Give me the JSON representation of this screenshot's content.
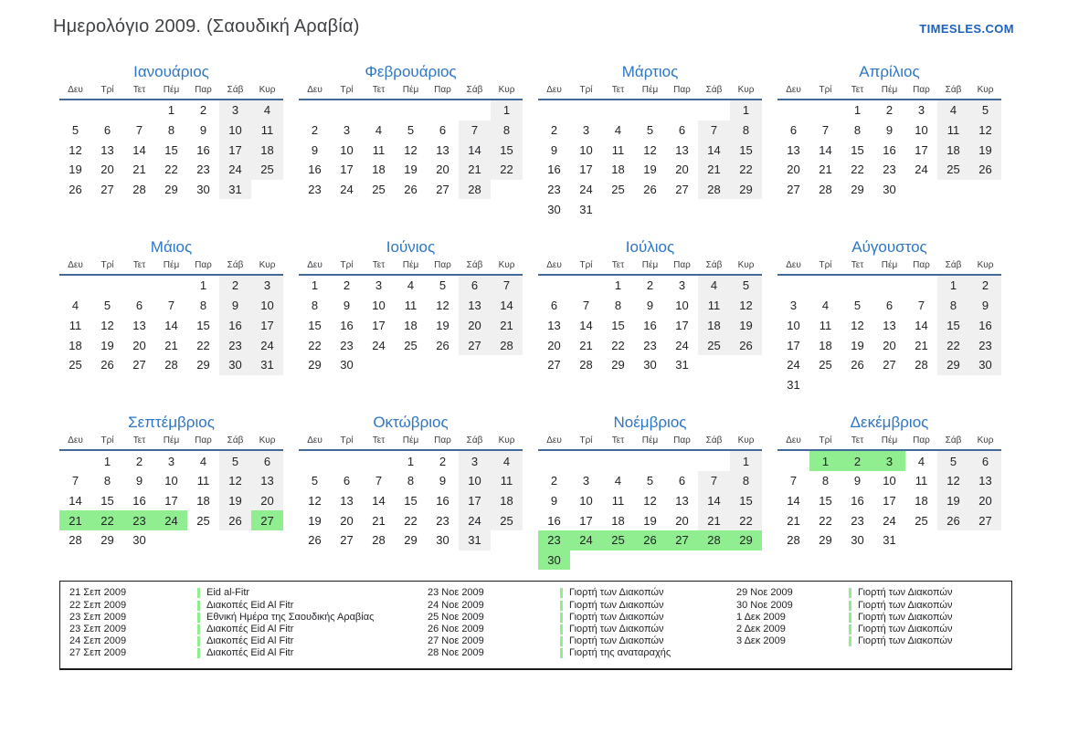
{
  "page": {
    "title": "Ημερολόγιο 2009. (Σαουδική Αραβία)",
    "site": "TIMESLES.COM"
  },
  "colors": {
    "accent_blue": "#2d76c4",
    "header_line_blue": "#41699c",
    "site_blue": "#1b61c0",
    "weekend_bg": "#f0f0f0",
    "holiday_green": "#90ee90"
  },
  "weekday_headers": [
    "Δευ",
    "Τρί",
    "Τετ",
    "Πέμ",
    "Παρ",
    "Σάβ",
    "Κυρ"
  ],
  "months": [
    {
      "name": "Ιανουάριος",
      "weeks": [
        [
          "",
          "",
          "",
          "1",
          "2",
          "3",
          "4"
        ],
        [
          "5",
          "6",
          "7",
          "8",
          "9",
          "10",
          "11"
        ],
        [
          "12",
          "13",
          "14",
          "15",
          "16",
          "17",
          "18"
        ],
        [
          "19",
          "20",
          "21",
          "22",
          "23",
          "24",
          "25"
        ],
        [
          "26",
          "27",
          "28",
          "29",
          "30",
          "31",
          ""
        ]
      ],
      "green_days": []
    },
    {
      "name": "Φεβρουάριος",
      "weeks": [
        [
          "",
          "",
          "",
          "",
          "",
          "",
          "1"
        ],
        [
          "2",
          "3",
          "4",
          "5",
          "6",
          "7",
          "8"
        ],
        [
          "9",
          "10",
          "11",
          "12",
          "13",
          "14",
          "15"
        ],
        [
          "16",
          "17",
          "18",
          "19",
          "20",
          "21",
          "22"
        ],
        [
          "23",
          "24",
          "25",
          "26",
          "27",
          "28",
          ""
        ]
      ],
      "green_days": []
    },
    {
      "name": "Μάρτιος",
      "weeks": [
        [
          "",
          "",
          "",
          "",
          "",
          "",
          "1"
        ],
        [
          "2",
          "3",
          "4",
          "5",
          "6",
          "7",
          "8"
        ],
        [
          "9",
          "10",
          "11",
          "12",
          "13",
          "14",
          "15"
        ],
        [
          "16",
          "17",
          "18",
          "19",
          "20",
          "21",
          "22"
        ],
        [
          "23",
          "24",
          "25",
          "26",
          "27",
          "28",
          "29"
        ],
        [
          "30",
          "31",
          "",
          "",
          "",
          "",
          ""
        ]
      ],
      "green_days": []
    },
    {
      "name": "Απρίλιος",
      "weeks": [
        [
          "",
          "",
          "1",
          "2",
          "3",
          "4",
          "5"
        ],
        [
          "6",
          "7",
          "8",
          "9",
          "10",
          "11",
          "12"
        ],
        [
          "13",
          "14",
          "15",
          "16",
          "17",
          "18",
          "19"
        ],
        [
          "20",
          "21",
          "22",
          "23",
          "24",
          "25",
          "26"
        ],
        [
          "27",
          "28",
          "29",
          "30",
          "",
          "",
          ""
        ]
      ],
      "green_days": []
    },
    {
      "name": "Μάιος",
      "weeks": [
        [
          "",
          "",
          "",
          "",
          "1",
          "2",
          "3"
        ],
        [
          "4",
          "5",
          "6",
          "7",
          "8",
          "9",
          "10"
        ],
        [
          "11",
          "12",
          "13",
          "14",
          "15",
          "16",
          "17"
        ],
        [
          "18",
          "19",
          "20",
          "21",
          "22",
          "23",
          "24"
        ],
        [
          "25",
          "26",
          "27",
          "28",
          "29",
          "30",
          "31"
        ]
      ],
      "green_days": []
    },
    {
      "name": "Ιούνιος",
      "weeks": [
        [
          "1",
          "2",
          "3",
          "4",
          "5",
          "6",
          "7"
        ],
        [
          "8",
          "9",
          "10",
          "11",
          "12",
          "13",
          "14"
        ],
        [
          "15",
          "16",
          "17",
          "18",
          "19",
          "20",
          "21"
        ],
        [
          "22",
          "23",
          "24",
          "25",
          "26",
          "27",
          "28"
        ],
        [
          "29",
          "30",
          "",
          "",
          "",
          "",
          ""
        ]
      ],
      "green_days": []
    },
    {
      "name": "Ιούλιος",
      "weeks": [
        [
          "",
          "",
          "1",
          "2",
          "3",
          "4",
          "5"
        ],
        [
          "6",
          "7",
          "8",
          "9",
          "10",
          "11",
          "12"
        ],
        [
          "13",
          "14",
          "15",
          "16",
          "17",
          "18",
          "19"
        ],
        [
          "20",
          "21",
          "22",
          "23",
          "24",
          "25",
          "26"
        ],
        [
          "27",
          "28",
          "29",
          "30",
          "31",
          "",
          ""
        ]
      ],
      "green_days": []
    },
    {
      "name": "Αύγουστος",
      "weeks": [
        [
          "",
          "",
          "",
          "",
          "",
          "1",
          "2"
        ],
        [
          "3",
          "4",
          "5",
          "6",
          "7",
          "8",
          "9"
        ],
        [
          "10",
          "11",
          "12",
          "13",
          "14",
          "15",
          "16"
        ],
        [
          "17",
          "18",
          "19",
          "20",
          "21",
          "22",
          "23"
        ],
        [
          "24",
          "25",
          "26",
          "27",
          "28",
          "29",
          "30"
        ],
        [
          "31",
          "",
          "",
          "",
          "",
          "",
          ""
        ]
      ],
      "green_days": []
    },
    {
      "name": "Σεπτέμβριος",
      "weeks": [
        [
          "",
          "1",
          "2",
          "3",
          "4",
          "5",
          "6"
        ],
        [
          "7",
          "8",
          "9",
          "10",
          "11",
          "12",
          "13"
        ],
        [
          "14",
          "15",
          "16",
          "17",
          "18",
          "19",
          "20"
        ],
        [
          "21",
          "22",
          "23",
          "24",
          "25",
          "26",
          "27"
        ],
        [
          "28",
          "29",
          "30",
          "",
          "",
          "",
          ""
        ]
      ],
      "green_days": [
        21,
        22,
        23,
        24,
        27
      ]
    },
    {
      "name": "Οκτώβριος",
      "weeks": [
        [
          "",
          "",
          "",
          "1",
          "2",
          "3",
          "4"
        ],
        [
          "5",
          "6",
          "7",
          "8",
          "9",
          "10",
          "11"
        ],
        [
          "12",
          "13",
          "14",
          "15",
          "16",
          "17",
          "18"
        ],
        [
          "19",
          "20",
          "21",
          "22",
          "23",
          "24",
          "25"
        ],
        [
          "26",
          "27",
          "28",
          "29",
          "30",
          "31",
          ""
        ]
      ],
      "green_days": []
    },
    {
      "name": "Νοέμβριος",
      "weeks": [
        [
          "",
          "",
          "",
          "",
          "",
          "",
          "1"
        ],
        [
          "2",
          "3",
          "4",
          "5",
          "6",
          "7",
          "8"
        ],
        [
          "9",
          "10",
          "11",
          "12",
          "13",
          "14",
          "15"
        ],
        [
          "16",
          "17",
          "18",
          "19",
          "20",
          "21",
          "22"
        ],
        [
          "23",
          "24",
          "25",
          "26",
          "27",
          "28",
          "29"
        ],
        [
          "30",
          "",
          "",
          "",
          "",
          "",
          ""
        ]
      ],
      "green_days": [
        23,
        24,
        25,
        26,
        27,
        28,
        29,
        30
      ]
    },
    {
      "name": "Δεκέμβριος",
      "weeks": [
        [
          "",
          "1",
          "2",
          "3",
          "4",
          "5",
          "6"
        ],
        [
          "7",
          "8",
          "9",
          "10",
          "11",
          "12",
          "13"
        ],
        [
          "14",
          "15",
          "16",
          "17",
          "18",
          "19",
          "20"
        ],
        [
          "21",
          "22",
          "23",
          "24",
          "25",
          "26",
          "27"
        ],
        [
          "28",
          "29",
          "30",
          "31",
          "",
          "",
          ""
        ]
      ],
      "green_days": [
        1,
        2,
        3
      ]
    }
  ],
  "legend": {
    "columns": [
      [
        {
          "date": "21 Σεπ 2009",
          "name": "Eid al-Fitr"
        },
        {
          "date": "22 Σεπ 2009",
          "name": "Διακοπές Eid Al Fitr"
        },
        {
          "date": "23 Σεπ 2009",
          "name": "Εθνική Ημέρα της Σαουδικής Αραβίας"
        },
        {
          "date": "23 Σεπ 2009",
          "name": "Διακοπές Eid Al Fitr"
        },
        {
          "date": "24 Σεπ 2009",
          "name": "Διακοπές Eid Al Fitr"
        },
        {
          "date": "27 Σεπ 2009",
          "name": "Διακοπές Eid Al Fitr"
        }
      ],
      [
        {
          "date": "23 Νοε 2009",
          "name": "Γιορτή των Διακοπών"
        },
        {
          "date": "24 Νοε 2009",
          "name": "Γιορτή των Διακοπών"
        },
        {
          "date": "25 Νοε 2009",
          "name": "Γιορτή των Διακοπών"
        },
        {
          "date": "26 Νοε 2009",
          "name": "Γιορτή των Διακοπών"
        },
        {
          "date": "27 Νοε 2009",
          "name": "Γιορτή των Διακοπών"
        },
        {
          "date": "28 Νοε 2009",
          "name": "Γιορτή της αναταραχής"
        }
      ],
      [
        {
          "date": "29 Νοε 2009",
          "name": "Γιορτή των Διακοπών"
        },
        {
          "date": "30 Νοε 2009",
          "name": "Γιορτή των Διακοπών"
        },
        {
          "date": "1 Δεκ 2009",
          "name": "Γιορτή των Διακοπών"
        },
        {
          "date": "2 Δεκ 2009",
          "name": "Γιορτή των Διακοπών"
        },
        {
          "date": "3 Δεκ 2009",
          "name": "Γιορτή των Διακοπών"
        }
      ]
    ]
  }
}
